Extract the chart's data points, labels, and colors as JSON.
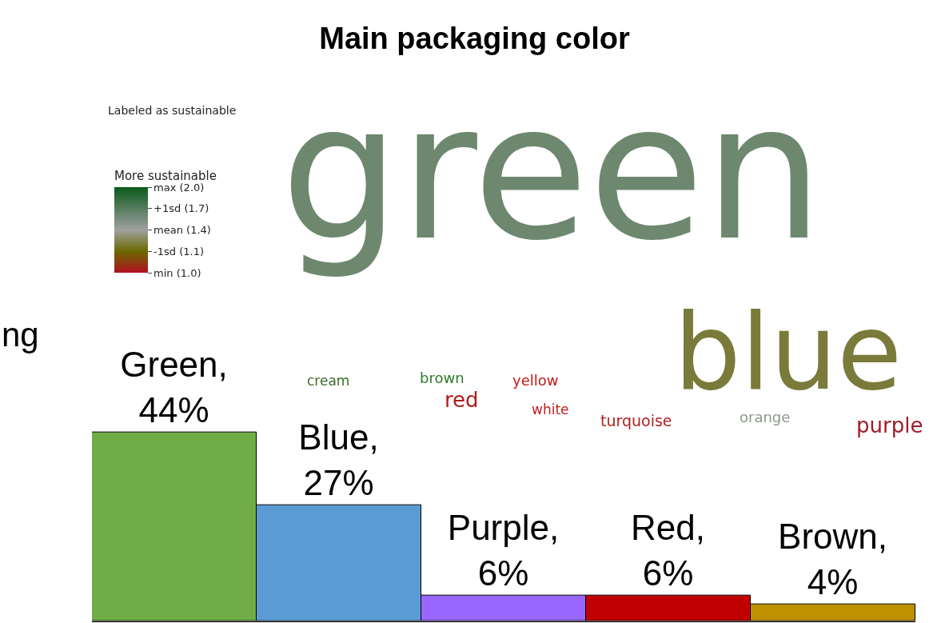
{
  "chart_data": [
    {
      "type": "bar",
      "title": "Main packaging color",
      "categories": [
        null,
        null,
        null,
        null,
        null
      ],
      "values": [
        44,
        27,
        6,
        6,
        4
      ],
      "colors": [
        "#70ad47",
        "#5b9bd5",
        "#9966ff",
        "#c00000",
        "#bf9000"
      ],
      "value_labels": [
        "Green, 44%",
        "Blue, 27%",
        "Purple, 6%",
        "Red, 6%",
        "Brown, 4%"
      ],
      "tick_labels": false
    },
    {
      "type": "other",
      "title": "Labeled as sustainable",
      "clabel": "More sustainable",
      "categories": [
        "green",
        "blue",
        "cream",
        "brown",
        "red",
        "yellow",
        "white",
        "turquoise",
        "orange",
        "purple"
      ],
      "colors": [
        "#6e8870",
        "#7a7a3a",
        "#3d6b2a",
        "#2e7a2a",
        "#b01c1c",
        "#c01818",
        "#c02020",
        "#b02020",
        "#8a9a8a",
        "#a01c2a"
      ],
      "annotations": [
        "max (2.0)",
        "+1sd (1.7)",
        "mean (1.4)",
        "-1sd (1.1)",
        "min (1.0)",
        "ng"
      ]
    }
  ]
}
